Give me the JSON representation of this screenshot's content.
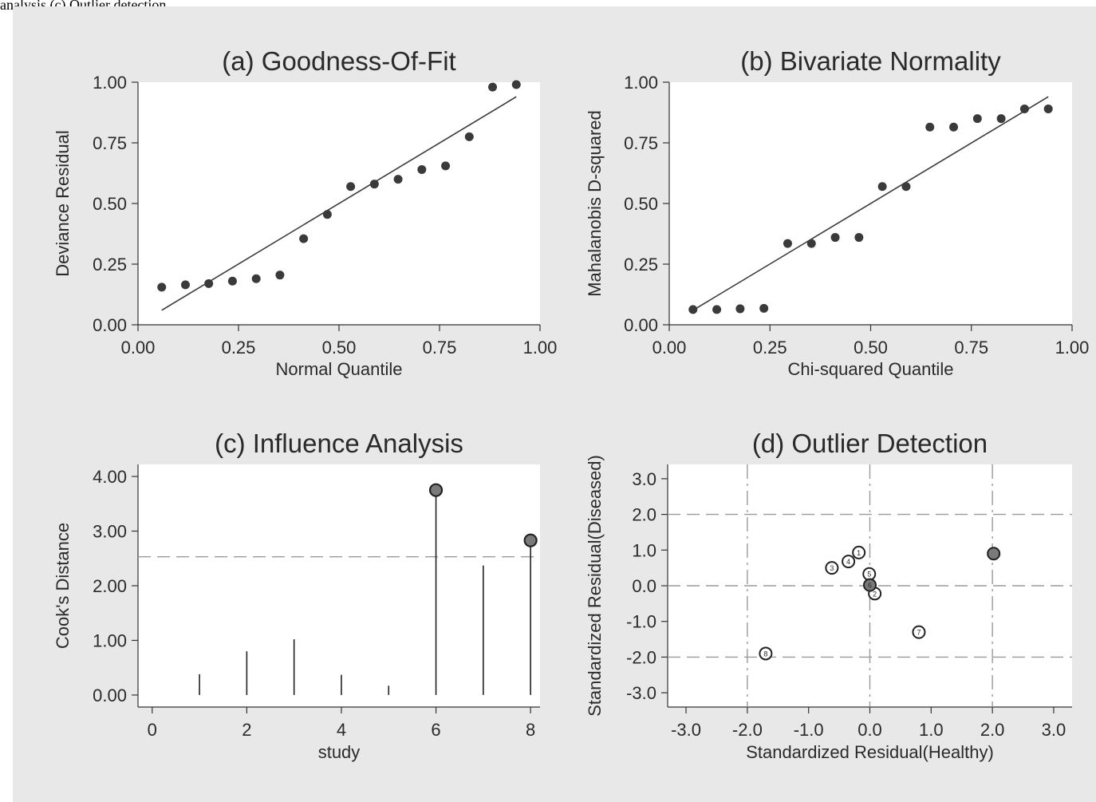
{
  "caption": "analysis (c) Outlier detection.",
  "colors": {
    "background": "#e8e8e8",
    "plot_area": "#ffffff",
    "marker": "#3a3a3a",
    "fit_line": "#3a3a3a",
    "reference_line": "#9a9a9a",
    "text": "#2a2a2a"
  },
  "chart_data": [
    {
      "id": "a",
      "type": "scatter",
      "title": "(a) Goodness-Of-Fit",
      "xlabel": "Normal Quantile",
      "ylabel": "Deviance Residual",
      "xlim": [
        0,
        1
      ],
      "ylim": [
        0,
        1
      ],
      "xticks": [
        "0.00",
        "0.25",
        "0.50",
        "0.75",
        "1.00"
      ],
      "xtick_values": [
        0,
        0.25,
        0.5,
        0.75,
        1
      ],
      "yticks": [
        "0.00",
        "0.25",
        "0.50",
        "0.75",
        "1.00"
      ],
      "ytick_values": [
        0,
        0.25,
        0.5,
        0.75,
        1
      ],
      "grid": false,
      "points": [
        {
          "x": 0.059,
          "y": 0.155
        },
        {
          "x": 0.118,
          "y": 0.165
        },
        {
          "x": 0.176,
          "y": 0.17
        },
        {
          "x": 0.235,
          "y": 0.18
        },
        {
          "x": 0.294,
          "y": 0.19
        },
        {
          "x": 0.353,
          "y": 0.205
        },
        {
          "x": 0.412,
          "y": 0.355
        },
        {
          "x": 0.471,
          "y": 0.455
        },
        {
          "x": 0.529,
          "y": 0.57
        },
        {
          "x": 0.588,
          "y": 0.58
        },
        {
          "x": 0.647,
          "y": 0.6
        },
        {
          "x": 0.706,
          "y": 0.64
        },
        {
          "x": 0.765,
          "y": 0.655
        },
        {
          "x": 0.824,
          "y": 0.775
        },
        {
          "x": 0.882,
          "y": 0.98
        },
        {
          "x": 0.941,
          "y": 0.99
        }
      ],
      "fit_line": [
        [
          0.059,
          0.06
        ],
        [
          0.941,
          0.94
        ]
      ]
    },
    {
      "id": "b",
      "type": "scatter",
      "title": "(b) Bivariate Normality",
      "xlabel": "Chi-squared Quantile",
      "ylabel": "Mahalanobis D-squared",
      "xlim": [
        0,
        1
      ],
      "ylim": [
        0,
        1
      ],
      "xticks": [
        "0.00",
        "0.25",
        "0.50",
        "0.75",
        "1.00"
      ],
      "xtick_values": [
        0,
        0.25,
        0.5,
        0.75,
        1
      ],
      "yticks": [
        "0.00",
        "0.25",
        "0.50",
        "0.75",
        "1.00"
      ],
      "ytick_values": [
        0,
        0.25,
        0.5,
        0.75,
        1
      ],
      "grid": false,
      "points": [
        {
          "x": 0.059,
          "y": 0.063
        },
        {
          "x": 0.118,
          "y": 0.063
        },
        {
          "x": 0.176,
          "y": 0.066
        },
        {
          "x": 0.235,
          "y": 0.068
        },
        {
          "x": 0.294,
          "y": 0.335
        },
        {
          "x": 0.353,
          "y": 0.335
        },
        {
          "x": 0.412,
          "y": 0.36
        },
        {
          "x": 0.471,
          "y": 0.36
        },
        {
          "x": 0.529,
          "y": 0.57
        },
        {
          "x": 0.588,
          "y": 0.57
        },
        {
          "x": 0.647,
          "y": 0.815
        },
        {
          "x": 0.706,
          "y": 0.815
        },
        {
          "x": 0.765,
          "y": 0.85
        },
        {
          "x": 0.824,
          "y": 0.85
        },
        {
          "x": 0.882,
          "y": 0.89
        },
        {
          "x": 0.941,
          "y": 0.89
        }
      ],
      "fit_line": [
        [
          0.059,
          0.06
        ],
        [
          0.941,
          0.94
        ]
      ]
    },
    {
      "id": "c",
      "type": "stem",
      "title": "(c) Influence Analysis",
      "xlabel": "study",
      "ylabel": "Cook's Distance",
      "xlim": [
        -0.3,
        8.2
      ],
      "ylim": [
        -0.22,
        4.22
      ],
      "xticks": [
        "0",
        "2",
        "4",
        "6",
        "8"
      ],
      "xtick_values": [
        0,
        2,
        4,
        6,
        8
      ],
      "yticks": [
        "0.00",
        "1.00",
        "2.00",
        "3.00",
        "4.00"
      ],
      "ytick_values": [
        0,
        1,
        2,
        3,
        4
      ],
      "grid": false,
      "threshold": 2.53,
      "stems": [
        {
          "study": 1,
          "value": 0.38,
          "flagged": false
        },
        {
          "study": 2,
          "value": 0.8,
          "flagged": false
        },
        {
          "study": 3,
          "value": 1.02,
          "flagged": false
        },
        {
          "study": 4,
          "value": 0.37,
          "flagged": false
        },
        {
          "study": 5,
          "value": 0.17,
          "flagged": false
        },
        {
          "study": 6,
          "value": 3.75,
          "flagged": true
        },
        {
          "study": 7,
          "value": 2.37,
          "flagged": false
        },
        {
          "study": 8,
          "value": 2.83,
          "flagged": true
        }
      ]
    },
    {
      "id": "d",
      "type": "scatter",
      "title": "(d) Outlier Detection",
      "xlabel": "Standardized Residual(Healthy)",
      "ylabel": "Standardized Residual(Diseased)",
      "xlim": [
        -3.3,
        3.3
      ],
      "ylim": [
        -3.4,
        3.4
      ],
      "xticks": [
        "-3.0",
        "-2.0",
        "-1.0",
        "0.0",
        "1.0",
        "2.0",
        "3.0"
      ],
      "xtick_values": [
        -3,
        -2,
        -1,
        0,
        1,
        2,
        3
      ],
      "yticks": [
        "-3.0",
        "-2.0",
        "-1.0",
        "0.0",
        "1.0",
        "2.0",
        "3.0"
      ],
      "ytick_values": [
        -3,
        -2,
        -1,
        0,
        1,
        2,
        3
      ],
      "grid": false,
      "reference_x": [
        -2,
        0,
        2
      ],
      "reference_y": [
        -2,
        0,
        2
      ],
      "points": [
        {
          "label": "1",
          "x": -0.18,
          "y": 0.93,
          "flagged": false
        },
        {
          "label": "2",
          "x": 0.08,
          "y": -0.22,
          "flagged": false
        },
        {
          "label": "3",
          "x": -0.62,
          "y": 0.5,
          "flagged": false
        },
        {
          "label": "4",
          "x": -0.35,
          "y": 0.68,
          "flagged": false
        },
        {
          "label": "5",
          "x": -0.01,
          "y": 0.33,
          "flagged": false
        },
        {
          "label": "6",
          "x": 0.0,
          "y": 0.02,
          "flagged": true
        },
        {
          "label": "7",
          "x": 0.8,
          "y": -1.3,
          "flagged": false
        },
        {
          "label": "8",
          "x": -1.7,
          "y": -1.9,
          "flagged": false
        },
        {
          "label": "",
          "x": 2.02,
          "y": 0.9,
          "flagged": true
        }
      ]
    }
  ]
}
